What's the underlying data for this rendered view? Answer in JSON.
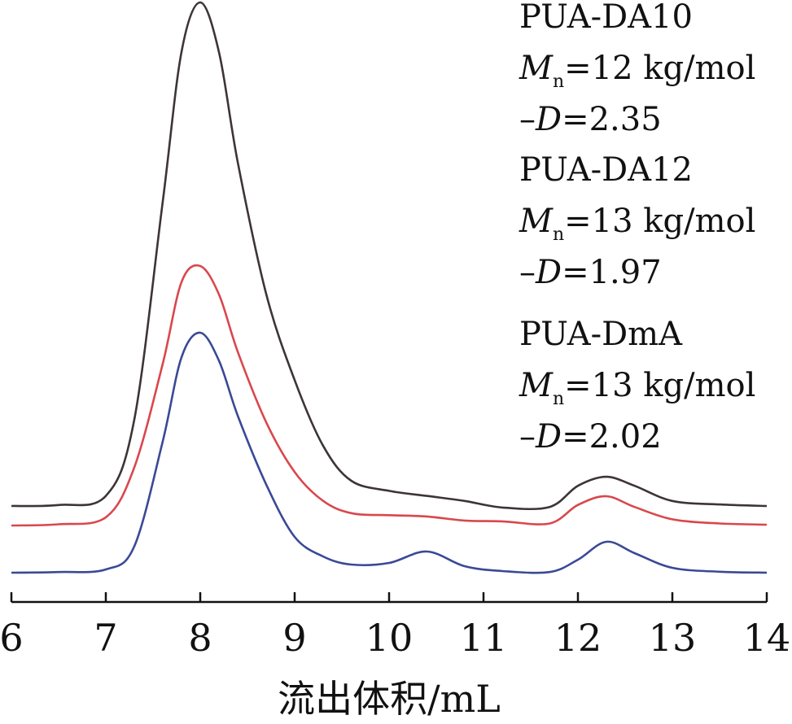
{
  "chart_data": {
    "type": "line",
    "title": "",
    "xlabel": "流出体积/mL",
    "ylabel": "",
    "xlim": [
      6,
      14
    ],
    "x_ticks": [
      "6",
      "7",
      "8",
      "9",
      "10",
      "11",
      "12",
      "13",
      "14"
    ],
    "grid": false,
    "series": [
      {
        "name": "PUA-DA10",
        "color": "#3d3535",
        "x": [
          6.0,
          6.5,
          7.0,
          7.3,
          7.6,
          7.8,
          8.0,
          8.2,
          8.4,
          8.7,
          9.0,
          9.3,
          9.6,
          10.0,
          10.4,
          10.8,
          11.2,
          11.7,
          12.0,
          12.3,
          12.6,
          13.0,
          13.5,
          14.0
        ],
        "y": [
          0.0,
          0.002,
          0.02,
          0.17,
          0.6,
          0.9,
          1.0,
          0.9,
          0.68,
          0.42,
          0.25,
          0.12,
          0.05,
          0.03,
          0.02,
          0.01,
          -0.003,
          -0.002,
          0.04,
          0.058,
          0.04,
          0.01,
          0.003,
          0.0
        ]
      },
      {
        "name": "PUA-DA12",
        "color": "#d9474d",
        "x": [
          6.0,
          6.5,
          7.0,
          7.3,
          7.6,
          7.8,
          8.0,
          8.2,
          8.4,
          8.7,
          9.0,
          9.3,
          9.6,
          10.0,
          10.4,
          10.8,
          11.2,
          11.7,
          12.0,
          12.3,
          12.6,
          13.0,
          13.5,
          14.0
        ],
        "y": [
          0.0,
          0.003,
          0.02,
          0.14,
          0.39,
          0.59,
          0.63,
          0.56,
          0.42,
          0.25,
          0.13,
          0.06,
          0.03,
          0.025,
          0.022,
          0.012,
          0.01,
          0.005,
          0.05,
          0.071,
          0.045,
          0.015,
          0.005,
          0.002
        ]
      },
      {
        "name": "PUA-DmA",
        "color": "#3a4996",
        "x": [
          6.0,
          6.5,
          7.0,
          7.3,
          7.6,
          7.8,
          8.0,
          8.2,
          8.4,
          8.7,
          9.0,
          9.3,
          9.6,
          10.0,
          10.4,
          10.8,
          11.2,
          11.7,
          12.0,
          12.3,
          12.6,
          13.0,
          13.5,
          14.0
        ],
        "y": [
          0.0,
          0.002,
          0.01,
          0.08,
          0.4,
          0.66,
          0.737,
          0.65,
          0.48,
          0.27,
          0.11,
          0.05,
          0.025,
          0.03,
          0.065,
          0.02,
          0.005,
          0.002,
          0.04,
          0.095,
          0.06,
          0.015,
          0.003,
          0.0
        ]
      }
    ],
    "annotations": [
      {
        "series": "PUA-DA10",
        "name": "PUA-DA10",
        "mn_label": "M",
        "mn_sub": "n",
        "mn_value": "=12 kg/mol",
        "d_prefix": "–",
        "d_label": "D",
        "d_value": "=2.35"
      },
      {
        "series": "PUA-DA12",
        "name": "PUA-DA12",
        "mn_label": "M",
        "mn_sub": "n",
        "mn_value": "=13 kg/mol",
        "d_prefix": "–",
        "d_label": "D",
        "d_value": "=1.97"
      },
      {
        "series": "PUA-DmA",
        "name": "PUA-DmA",
        "mn_label": "M",
        "mn_sub": "n",
        "mn_value": "=13 kg/mol",
        "d_prefix": "–",
        "d_label": "D",
        "d_value": "=2.02"
      }
    ]
  }
}
